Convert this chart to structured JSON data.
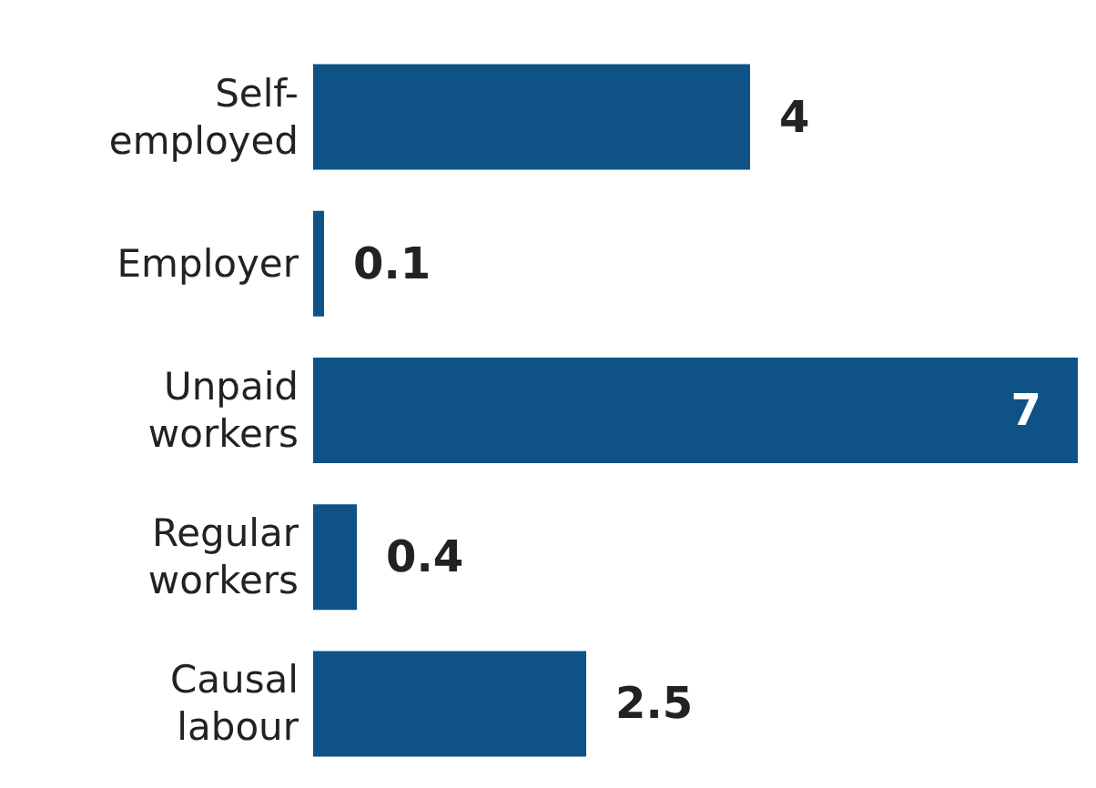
{
  "chart_data": {
    "type": "bar",
    "orientation": "horizontal",
    "categories": [
      "Self-employed",
      "Employer",
      "Unpaid workers",
      "Regular workers",
      "Causal labour"
    ],
    "values": [
      4,
      0.1,
      7,
      0.4,
      2.5
    ],
    "color": "#0f5285",
    "data_labels": true
  }
}
